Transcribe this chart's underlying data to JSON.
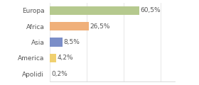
{
  "categories": [
    "Europa",
    "Africa",
    "Asia",
    "America",
    "Apolidi"
  ],
  "values": [
    60.5,
    26.5,
    8.5,
    4.2,
    0.2
  ],
  "bar_colors": [
    "#b5c98e",
    "#f0b07a",
    "#7b8ec8",
    "#f0d070",
    "#e8e8e8"
  ],
  "labels": [
    "60,5%",
    "26,5%",
    "8,5%",
    "4,2%",
    "0,2%"
  ],
  "background_color": "#ffffff",
  "xlim": [
    0,
    85
  ],
  "label_fontsize": 6.5,
  "cat_fontsize": 6.5,
  "bar_height": 0.55
}
